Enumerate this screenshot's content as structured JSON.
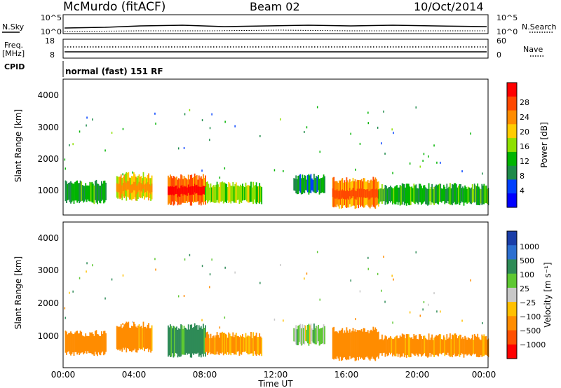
{
  "header": {
    "station": "McMurdo (fitACF)",
    "beam": "Beam 02",
    "date": "10/Oct/2014"
  },
  "summary": {
    "nsky_label": "N.Sky",
    "nsearch_label": "N.Search",
    "noise_ticks_left": [
      "10^5",
      "10^0"
    ],
    "noise_ticks_right": [
      "10^5",
      "10^0"
    ],
    "freq_label": "Freq.",
    "freq_unit": "[MHz]",
    "freq_ticks": [
      "18",
      "8"
    ],
    "nave_label": "Nave",
    "nave_ticks": [
      "60",
      "0"
    ],
    "cpid_label": "CPID",
    "cpid_text": "normal (fast) 151 RF"
  },
  "power_panel": {
    "ylabel": "Slant Range [km]",
    "yticks": [
      "1000",
      "2000",
      "3000",
      "4000"
    ],
    "colorbar_label": "Power [dB]",
    "colorbar_ticks": [
      "28",
      "24",
      "20",
      "16",
      "12",
      "8",
      "4"
    ],
    "colorbar_colors": [
      "#ff0000",
      "#ff4800",
      "#ff8c00",
      "#ffcc00",
      "#8ee000",
      "#00b400",
      "#1e8a4a",
      "#0040ff",
      "#0000ff"
    ]
  },
  "velocity_panel": {
    "ylabel": "Slant Range [km]",
    "yticks": [
      "1000",
      "2000",
      "3000",
      "4000"
    ],
    "colorbar_label": "Velocity [m s⁻¹]",
    "colorbar_ticks": [
      "1000",
      "500",
      "100",
      "25",
      "−25",
      "−100",
      "−500",
      "−1000"
    ],
    "colorbar_colors": [
      "#1a3ea8",
      "#2c6fd0",
      "#2e8b57",
      "#5ec832",
      "#c8c8c8",
      "#ffc000",
      "#ff8c00",
      "#ff5000",
      "#ff0000"
    ]
  },
  "xaxis": {
    "label": "Time UT",
    "ticks": [
      "00:00",
      "04:00",
      "08:00",
      "12:00",
      "16:00",
      "20:00",
      "00:00"
    ]
  },
  "chart_data": {
    "type": "heatmap",
    "x_range": [
      "00:00",
      "24:00"
    ],
    "y_range_km": [
      180,
      4500
    ],
    "bands": [
      {
        "start_h": 0.1,
        "end_h": 2.4,
        "lo_km": 600,
        "hi_km": 1200,
        "power_db": 10,
        "velocity": -200
      },
      {
        "start_h": 3.0,
        "end_h": 5.0,
        "lo_km": 700,
        "hi_km": 1450,
        "power_db": 18,
        "velocity": -150
      },
      {
        "start_h": 5.9,
        "end_h": 8.0,
        "lo_km": 550,
        "hi_km": 1400,
        "power_db": 24,
        "velocity": 150
      },
      {
        "start_h": 8.0,
        "end_h": 11.2,
        "lo_km": 600,
        "hi_km": 1150,
        "power_db": 14,
        "velocity": -120
      },
      {
        "start_h": 13.0,
        "end_h": 14.8,
        "lo_km": 900,
        "hi_km": 1400,
        "power_db": 8,
        "velocity": 30
      },
      {
        "start_h": 15.2,
        "end_h": 17.8,
        "lo_km": 450,
        "hi_km": 1300,
        "power_db": 22,
        "velocity": -200
      },
      {
        "start_h": 17.8,
        "end_h": 24.0,
        "lo_km": 550,
        "hi_km": 1100,
        "power_db": 10,
        "velocity": -150
      }
    ]
  }
}
